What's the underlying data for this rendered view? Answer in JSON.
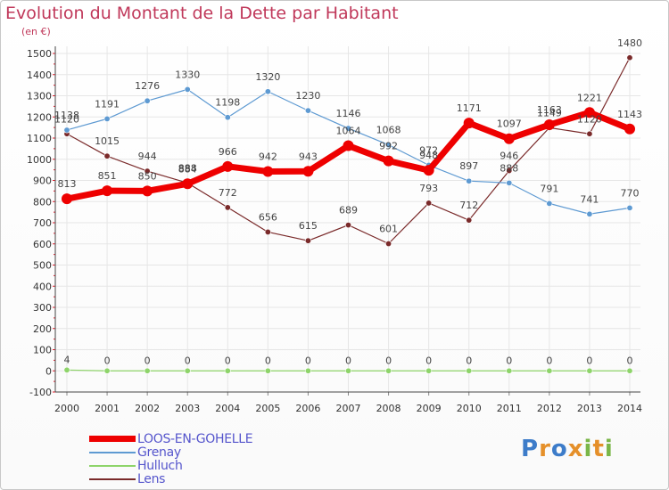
{
  "title": "Evolution du Montant de la Dette par Habitant",
  "subtitle": "(en €)",
  "colors": {
    "title": "#c0385a",
    "grid": "#e6e6e6",
    "axis_ticks": "#e21a2a"
  },
  "logo": {
    "letters": [
      "P",
      "r",
      "o",
      "x",
      "i",
      "t",
      "i"
    ],
    "colors": [
      "#3d7cc9",
      "#e5902a",
      "#3d7cc9",
      "#e5902a",
      "#7ab648",
      "#e5902a",
      "#7ab648"
    ]
  },
  "chart_data": {
    "type": "line",
    "title": "Evolution du Montant de la Dette par Habitant",
    "ylabel": "(en €)",
    "x": [
      "2000",
      "2001",
      "2002",
      "2003",
      "2004",
      "2005",
      "2006",
      "2007",
      "2008",
      "2009",
      "2010",
      "2011",
      "2012",
      "2013",
      "2014"
    ],
    "ylim": [
      -100,
      1500
    ],
    "yticks": [
      "-100",
      "0",
      "100",
      "200",
      "300",
      "400",
      "500",
      "600",
      "700",
      "800",
      "900",
      "1000",
      "1100",
      "1200",
      "1300",
      "1400",
      "1500"
    ],
    "grid": true,
    "legend_position": "bottom-left",
    "series": [
      {
        "name": "LOOS-EN-GOHELLE",
        "color": "#ee0000",
        "width": 7,
        "marker": 6,
        "values": [
          813,
          851,
          850,
          884,
          966,
          942,
          943,
          1064,
          992,
          948,
          1171,
          1097,
          1163,
          1221,
          1143
        ],
        "labels": [
          "813",
          "851",
          "850",
          "884",
          "966",
          "942",
          "943",
          "1064",
          "992",
          "948",
          "1171",
          "1097",
          "1163",
          "1221",
          "1143"
        ]
      },
      {
        "name": "Grenay",
        "color": "#5e9ad2",
        "width": 1.2,
        "marker": 3.2,
        "values": [
          1138,
          1191,
          1276,
          1330,
          1198,
          1320,
          1230,
          1146,
          1068,
          972,
          897,
          888,
          791,
          741,
          770
        ],
        "labels": [
          "1138",
          "1191",
          "1276",
          "1330",
          "1198",
          "1320",
          "1230",
          "1146",
          "1068",
          "972",
          "897",
          "888",
          "791",
          "741",
          "770"
        ]
      },
      {
        "name": "Hulluch",
        "color": "#8ed46a",
        "width": 1.2,
        "marker": 3.2,
        "values": [
          4,
          0,
          0,
          0,
          0,
          0,
          0,
          0,
          0,
          0,
          0,
          0,
          0,
          0,
          0
        ],
        "labels": [
          "4",
          "0",
          "0",
          "0",
          "0",
          "0",
          "0",
          "0",
          "0",
          "0",
          "0",
          "0",
          "0",
          "0",
          "0"
        ]
      },
      {
        "name": "Lens",
        "color": "#7a2a2a",
        "width": 1.2,
        "marker": 3.2,
        "values": [
          1120,
          1015,
          944,
          888,
          772,
          656,
          615,
          689,
          601,
          793,
          712,
          946,
          1149,
          1120,
          1480
        ],
        "labels": [
          "1120",
          "1015",
          "944",
          "888",
          "772",
          "656",
          "615",
          "689",
          "601",
          "793",
          "712",
          "946",
          "1149",
          "1120",
          "1480"
        ]
      }
    ]
  }
}
